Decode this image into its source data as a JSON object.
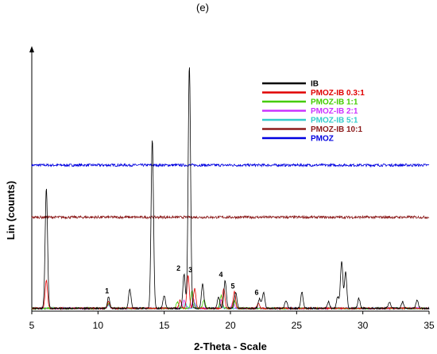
{
  "chart_data": {
    "type": "line",
    "panel_label": "(e)",
    "xlabel": "2-Theta - Scale",
    "ylabel": "Lin (counts)",
    "xlim": [
      5,
      35
    ],
    "x_ticks": [
      "5",
      "10",
      "15",
      "20",
      "25",
      "30",
      "35"
    ],
    "grid": false,
    "legend_position": "top-right",
    "legend": [
      {
        "name": "IB",
        "color": "#000000"
      },
      {
        "name": "PMOZ-IB 0.3:1",
        "color": "#e00000"
      },
      {
        "name": "PMOZ-IB 1:1",
        "color": "#44cc00"
      },
      {
        "name": "PMOZ-IB 2:1",
        "color": "#cc33ff"
      },
      {
        "name": "PMOZ-IB 5:1",
        "color": "#33cccc"
      },
      {
        "name": "PMOZ-IB 10:1",
        "color": "#8b1a1a"
      },
      {
        "name": "PMOZ",
        "color": "#0000e0"
      }
    ],
    "peak_annotations": [
      {
        "label": "1",
        "x": 10.8
      },
      {
        "label": "2",
        "x": 16.2
      },
      {
        "label": "3",
        "x": 17.1
      },
      {
        "label": "4",
        "x": 19.4
      },
      {
        "label": "5",
        "x": 20.3
      },
      {
        "label": "6",
        "x": 22.1
      }
    ],
    "series": [
      {
        "name": "IB",
        "color": "#000000",
        "peaks": [
          [
            6.1,
            148
          ],
          [
            10.8,
            14
          ],
          [
            12.4,
            24
          ],
          [
            14.1,
            208
          ],
          [
            15.0,
            16
          ],
          [
            16.5,
            42
          ],
          [
            16.9,
            298
          ],
          [
            17.9,
            30
          ],
          [
            19.1,
            14
          ],
          [
            19.6,
            34
          ],
          [
            20.4,
            20
          ],
          [
            22.2,
            12
          ],
          [
            22.5,
            20
          ],
          [
            24.2,
            10
          ],
          [
            25.4,
            20
          ],
          [
            27.4,
            8
          ],
          [
            28.1,
            14
          ],
          [
            28.4,
            58
          ],
          [
            28.7,
            44
          ],
          [
            29.7,
            12
          ],
          [
            32.0,
            8
          ],
          [
            33.0,
            8
          ],
          [
            34.1,
            10
          ]
        ]
      },
      {
        "name": "PMOZ-IB 0.3:1",
        "color": "#e00000",
        "peaks": [
          [
            6.1,
            34
          ],
          [
            10.8,
            8
          ],
          [
            16.2,
            10
          ],
          [
            16.8,
            40
          ],
          [
            17.3,
            24
          ],
          [
            19.5,
            24
          ],
          [
            20.3,
            20
          ],
          [
            22.1,
            6
          ]
        ]
      },
      {
        "name": "PMOZ-IB 1:1",
        "color": "#44cc00",
        "peaks": [
          [
            10.8,
            6
          ],
          [
            16.0,
            8
          ],
          [
            17.1,
            22
          ],
          [
            18.0,
            10
          ],
          [
            19.3,
            16
          ],
          [
            20.3,
            10
          ]
        ]
      },
      {
        "name": "PMOZ-IB 2:1",
        "color": "#cc33ff",
        "peaks": [
          [
            10.8,
            5
          ],
          [
            16.5,
            10
          ],
          [
            17.2,
            12
          ],
          [
            19.3,
            10
          ],
          [
            20.2,
            8
          ]
        ]
      },
      {
        "name": "PMOZ-IB 5:1",
        "color": "#33cccc",
        "peaks": [
          [
            10.8,
            4
          ],
          [
            16.6,
            6
          ],
          [
            17.3,
            6
          ],
          [
            19.3,
            5
          ]
        ]
      },
      {
        "name": "PMOZ-IB 10:1",
        "color": "#8b1a1a",
        "baseline": 112,
        "peaks": []
      },
      {
        "name": "PMOZ",
        "color": "#0000e0",
        "baseline": 176,
        "peaks": []
      }
    ]
  }
}
